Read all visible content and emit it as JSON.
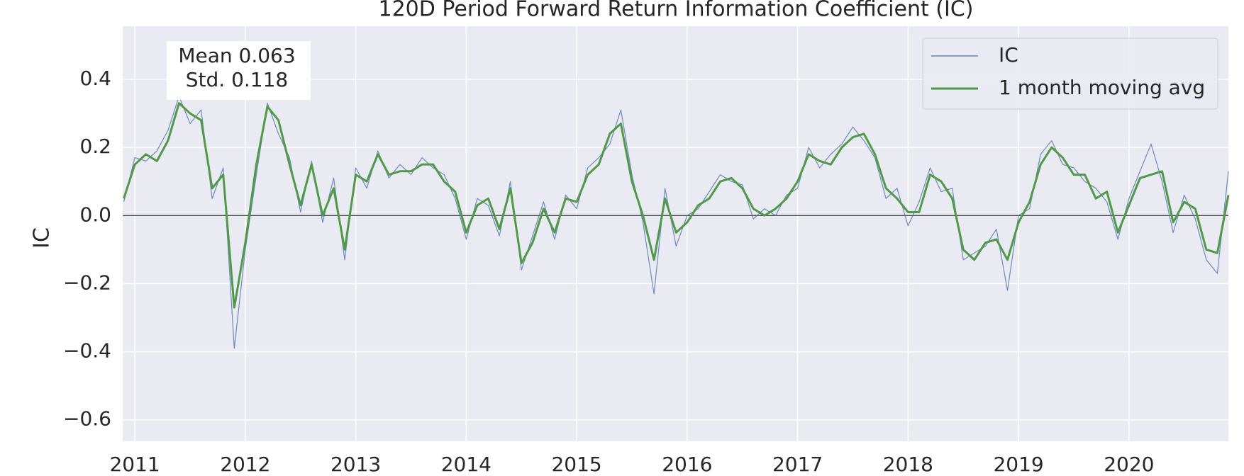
{
  "chart_data": {
    "type": "line",
    "title": "120D Period Forward Return Information Coefficient (IC)",
    "ylabel": "IC",
    "annotation": [
      "Mean 0.063",
      "Std. 0.118"
    ],
    "x": [
      2010.9,
      2011.0,
      2011.1,
      2011.2,
      2011.3,
      2011.4,
      2011.5,
      2011.6,
      2011.7,
      2011.8,
      2011.9,
      2012.0,
      2012.1,
      2012.2,
      2012.3,
      2012.4,
      2012.5,
      2012.6,
      2012.7,
      2012.8,
      2012.9,
      2013.0,
      2013.1,
      2013.2,
      2013.3,
      2013.4,
      2013.5,
      2013.6,
      2013.7,
      2013.8,
      2013.9,
      2014.0,
      2014.1,
      2014.2,
      2014.3,
      2014.4,
      2014.5,
      2014.6,
      2014.7,
      2014.8,
      2014.9,
      2015.0,
      2015.1,
      2015.2,
      2015.3,
      2015.4,
      2015.5,
      2015.6,
      2015.7,
      2015.8,
      2015.9,
      2016.0,
      2016.1,
      2016.2,
      2016.3,
      2016.4,
      2016.5,
      2016.6,
      2016.7,
      2016.8,
      2016.9,
      2017.0,
      2017.1,
      2017.2,
      2017.3,
      2017.4,
      2017.5,
      2017.6,
      2017.7,
      2017.8,
      2017.9,
      2018.0,
      2018.1,
      2018.2,
      2018.3,
      2018.4,
      2018.5,
      2018.6,
      2018.7,
      2018.8,
      2018.9,
      2019.0,
      2019.1,
      2019.2,
      2019.3,
      2019.4,
      2019.5,
      2019.6,
      2019.7,
      2019.8,
      2019.9,
      2020.0,
      2020.1,
      2020.2,
      2020.3,
      2020.4,
      2020.5,
      2020.6,
      2020.7,
      2020.8,
      2020.9
    ],
    "series": [
      {
        "name": "IC",
        "color": "#4c72b0",
        "values": [
          0.04,
          0.17,
          0.16,
          0.19,
          0.25,
          0.35,
          0.27,
          0.31,
          0.05,
          0.14,
          -0.39,
          -0.1,
          0.12,
          0.33,
          0.24,
          0.17,
          0.01,
          0.16,
          -0.02,
          0.11,
          -0.13,
          0.14,
          0.08,
          0.19,
          0.11,
          0.15,
          0.12,
          0.17,
          0.14,
          0.12,
          0.05,
          -0.07,
          0.05,
          0.03,
          -0.06,
          0.1,
          -0.16,
          -0.06,
          0.04,
          -0.07,
          0.06,
          0.02,
          0.14,
          0.17,
          0.21,
          0.31,
          0.12,
          -0.02,
          -0.23,
          0.08,
          -0.09,
          0.0,
          0.02,
          0.07,
          0.12,
          0.1,
          0.09,
          -0.01,
          0.02,
          0.0,
          0.06,
          0.08,
          0.2,
          0.14,
          0.18,
          0.21,
          0.26,
          0.22,
          0.17,
          0.05,
          0.08,
          -0.03,
          0.04,
          0.14,
          0.07,
          0.08,
          -0.13,
          -0.11,
          -0.09,
          -0.04,
          -0.22,
          0.0,
          0.02,
          0.18,
          0.22,
          0.15,
          0.14,
          0.1,
          0.08,
          0.04,
          -0.07,
          0.05,
          0.13,
          0.21,
          0.1,
          -0.05,
          0.06,
          -0.01,
          -0.13,
          -0.17,
          0.13
        ]
      },
      {
        "name": "1 month moving avg",
        "color": "#4e9a45",
        "values": [
          0.05,
          0.15,
          0.18,
          0.16,
          0.22,
          0.33,
          0.3,
          0.28,
          0.08,
          0.12,
          -0.27,
          -0.08,
          0.15,
          0.32,
          0.28,
          0.15,
          0.03,
          0.15,
          0.0,
          0.08,
          -0.1,
          0.12,
          0.1,
          0.18,
          0.12,
          0.13,
          0.13,
          0.15,
          0.15,
          0.1,
          0.07,
          -0.05,
          0.03,
          0.05,
          -0.04,
          0.08,
          -0.14,
          -0.08,
          0.02,
          -0.05,
          0.05,
          0.04,
          0.12,
          0.15,
          0.24,
          0.27,
          0.1,
          0.0,
          -0.13,
          0.05,
          -0.05,
          -0.02,
          0.03,
          0.05,
          0.1,
          0.11,
          0.08,
          0.02,
          0.0,
          0.02,
          0.05,
          0.1,
          0.18,
          0.16,
          0.15,
          0.2,
          0.23,
          0.24,
          0.18,
          0.08,
          0.05,
          0.01,
          0.01,
          0.12,
          0.1,
          0.05,
          -0.1,
          -0.13,
          -0.08,
          -0.07,
          -0.13,
          -0.02,
          0.04,
          0.15,
          0.2,
          0.17,
          0.12,
          0.12,
          0.05,
          0.07,
          -0.05,
          0.03,
          0.11,
          0.12,
          0.13,
          -0.02,
          0.04,
          0.02,
          -0.1,
          -0.11,
          0.06
        ]
      }
    ],
    "hlines": [
      0
    ],
    "xlim": [
      2010.89,
      2020.9
    ],
    "xticks": [
      2011,
      2012,
      2013,
      2014,
      2015,
      2016,
      2017,
      2018,
      2019,
      2020
    ],
    "ylim": [
      -0.663,
      0.556
    ],
    "yticks": [
      {
        "value": -0.6,
        "label": "−0.6"
      },
      {
        "value": -0.4,
        "label": "−0.4"
      },
      {
        "value": -0.2,
        "label": "−0.2"
      },
      {
        "value": 0,
        "label": "0.0"
      },
      0.2,
      0.4
    ],
    "grid": true,
    "legend": "upper right"
  }
}
